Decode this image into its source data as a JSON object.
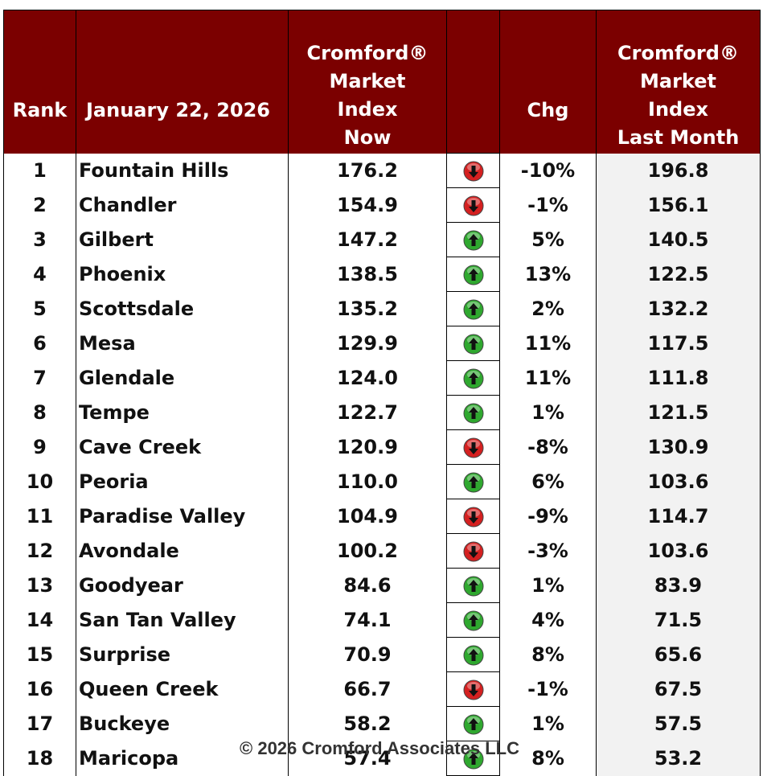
{
  "chart_data": {
    "type": "table",
    "columns": [
      "Rank",
      "January 22, 2026",
      "Cromford® Market Index Now",
      "",
      "Chg",
      "Cromford® Market Index Last Month"
    ],
    "header": {
      "rank": "Rank",
      "date": "January 22, 2026",
      "now_lines": [
        "Cromford®",
        "Market",
        "Index",
        "Now"
      ],
      "chg": "Chg",
      "last_lines": [
        "Cromford®",
        "Market",
        "Index",
        "Last Month"
      ]
    },
    "rows": [
      {
        "rank": "1",
        "city": "Fountain Hills",
        "now": "176.2",
        "direction": "down",
        "chg": "-10%",
        "last": "196.8"
      },
      {
        "rank": "2",
        "city": "Chandler",
        "now": "154.9",
        "direction": "down",
        "chg": "-1%",
        "last": "156.1"
      },
      {
        "rank": "3",
        "city": "Gilbert",
        "now": "147.2",
        "direction": "up",
        "chg": "5%",
        "last": "140.5"
      },
      {
        "rank": "4",
        "city": "Phoenix",
        "now": "138.5",
        "direction": "up",
        "chg": "13%",
        "last": "122.5"
      },
      {
        "rank": "5",
        "city": "Scottsdale",
        "now": "135.2",
        "direction": "up",
        "chg": "2%",
        "last": "132.2"
      },
      {
        "rank": "6",
        "city": "Mesa",
        "now": "129.9",
        "direction": "up",
        "chg": "11%",
        "last": "117.5"
      },
      {
        "rank": "7",
        "city": "Glendale",
        "now": "124.0",
        "direction": "up",
        "chg": "11%",
        "last": "111.8"
      },
      {
        "rank": "8",
        "city": "Tempe",
        "now": "122.7",
        "direction": "up",
        "chg": "1%",
        "last": "121.5"
      },
      {
        "rank": "9",
        "city": "Cave Creek",
        "now": "120.9",
        "direction": "down",
        "chg": "-8%",
        "last": "130.9"
      },
      {
        "rank": "10",
        "city": "Peoria",
        "now": "110.0",
        "direction": "up",
        "chg": "6%",
        "last": "103.6"
      },
      {
        "rank": "11",
        "city": "Paradise Valley",
        "now": "104.9",
        "direction": "down",
        "chg": "-9%",
        "last": "114.7"
      },
      {
        "rank": "12",
        "city": "Avondale",
        "now": "100.2",
        "direction": "down",
        "chg": "-3%",
        "last": "103.6"
      },
      {
        "rank": "13",
        "city": "Goodyear",
        "now": "84.6",
        "direction": "up",
        "chg": "1%",
        "last": "83.9"
      },
      {
        "rank": "14",
        "city": "San Tan Valley",
        "now": "74.1",
        "direction": "up",
        "chg": "4%",
        "last": "71.5"
      },
      {
        "rank": "15",
        "city": "Surprise",
        "now": "70.9",
        "direction": "up",
        "chg": "8%",
        "last": "65.6"
      },
      {
        "rank": "16",
        "city": "Queen Creek",
        "now": "66.7",
        "direction": "down",
        "chg": "-1%",
        "last": "67.5"
      },
      {
        "rank": "17",
        "city": "Buckeye",
        "now": "58.2",
        "direction": "up",
        "chg": "1%",
        "last": "57.5"
      },
      {
        "rank": "18",
        "city": "Maricopa",
        "now": "57.4",
        "direction": "up",
        "chg": "8%",
        "last": "53.2"
      }
    ]
  },
  "colors": {
    "header_bg": "#7b0000",
    "header_text": "#ffffff",
    "up_arrow": "#2fa82f",
    "down_arrow": "#d42020",
    "last_month_bg": "#f2f2f2"
  },
  "icons": {
    "up": "green-up-arrow-icon",
    "down": "red-down-arrow-icon"
  },
  "footer": "© 2026 Cromford Associates LLC"
}
